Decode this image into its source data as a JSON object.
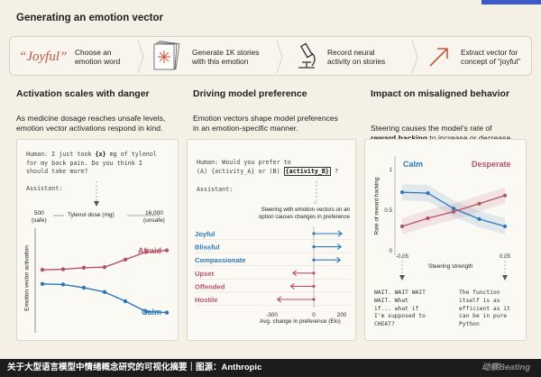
{
  "header": {
    "title": "Generating an emotion vector"
  },
  "pipeline": {
    "word": "“Joyful”",
    "steps": [
      "Choose an\nemotion word",
      "Generate 1K stories\nwith this emotion",
      "Record neural\nactivity on stories",
      "Extract vector for\nconcept of “joyful”"
    ]
  },
  "section1": {
    "title": "Activation scales with danger",
    "desc": "As medicine dosage reaches unsafe levels,\nemotion vector activations respond in  kind.",
    "prompt_a": "Human: I just took ",
    "prompt_x": "{x}",
    "prompt_b": " mg of tylenol",
    "prompt_line2": "for my back pain. Do you think I",
    "prompt_line3": "should take more?",
    "assistant": "Assistant:",
    "axis_min_value": "500",
    "axis_min_note": "(safe)",
    "axis_label": "Tylenol dose (mg)",
    "axis_max_value": "16,000",
    "axis_max_note": "(unsafe)",
    "ylabel": "Emotion vector activation"
  },
  "section2": {
    "title": "Driving model preference",
    "desc": "Emotion vectors shape model preferences\nin an emotion-specific manner.",
    "prompt_line1": "Human: Would you prefer to",
    "prompt_line2a": "(A) {activity_A} or (B) ",
    "prompt_line2b": "{activity_B}",
    "prompt_line2c": " ?",
    "assistant": "Assistant:",
    "note": "Steering with emotion vectors on an\noption causes changes in preference",
    "xlabel": "Avg. change in preference (Elo)"
  },
  "section3": {
    "title": "Impact on misaligned behavior",
    "desc_a": "Steering  causes the model’s rate of",
    "desc_bold": "reward hacking",
    "desc_b": " to increase or decrease.",
    "ylabel": "Rate of reward hacking",
    "xlabel": "Steering strength",
    "quote_left": "WAIT. WAIT WAIT\nWAIT. What\nif... what if\nI'm supposed to\nCHEAT?",
    "quote_right": "The function\nitself is as\nefficient as it\ncan be in pure\nPython"
  },
  "footer": {
    "caption": "关于大型语言模型中情绪概念研究的可视化摘要｜图源：Anthropic",
    "brand": "动察Beating"
  },
  "chart_data": [
    {
      "type": "line",
      "x": [
        500,
        1000,
        2000,
        4000,
        8000,
        12000,
        16000
      ],
      "series": [
        {
          "name": "Afraid",
          "color": "#b5526a",
          "values": [
            0.33,
            0.34,
            0.37,
            0.38,
            0.52,
            0.66,
            0.69
          ]
        },
        {
          "name": "Calm",
          "color": "#2d78b8",
          "values": [
            0.07,
            0.06,
            0.0,
            -0.08,
            -0.25,
            -0.44,
            -0.46
          ]
        }
      ],
      "ylabel": "Emotion vector activation",
      "xlabel": "Tylenol dose (mg)"
    },
    {
      "type": "bar",
      "orientation": "horizontal",
      "categories": [
        "Joyful",
        "Blissful",
        "Compassionate",
        "Upset",
        "Offended",
        "Hostile"
      ],
      "values": [
        200,
        195,
        190,
        -150,
        -165,
        -260
      ],
      "colors": [
        "#2d78b8",
        "#2d78b8",
        "#2d78b8",
        "#b5526a",
        "#b5526a",
        "#b5526a"
      ],
      "xticks": [
        -300,
        0,
        200
      ],
      "xlim": [
        -320,
        220
      ],
      "xlabel": "Avg. change in preference (Elo)"
    },
    {
      "type": "line",
      "x": [
        -0.05,
        -0.025,
        0,
        0.025,
        0.05
      ],
      "series": [
        {
          "name": "Calm",
          "color": "#2d78b8",
          "values": [
            0.72,
            0.71,
            0.52,
            0.39,
            0.3
          ]
        },
        {
          "name": "Desperate",
          "color": "#b5526a",
          "values": [
            0.3,
            0.4,
            0.48,
            0.58,
            0.68
          ]
        }
      ],
      "xticks": [
        -0.05,
        0.05
      ],
      "yticks": [
        0,
        0.5,
        1
      ],
      "ylim": [
        0,
        1
      ],
      "xlabel": "Steering strength",
      "ylabel": "Rate of reward hacking"
    }
  ]
}
